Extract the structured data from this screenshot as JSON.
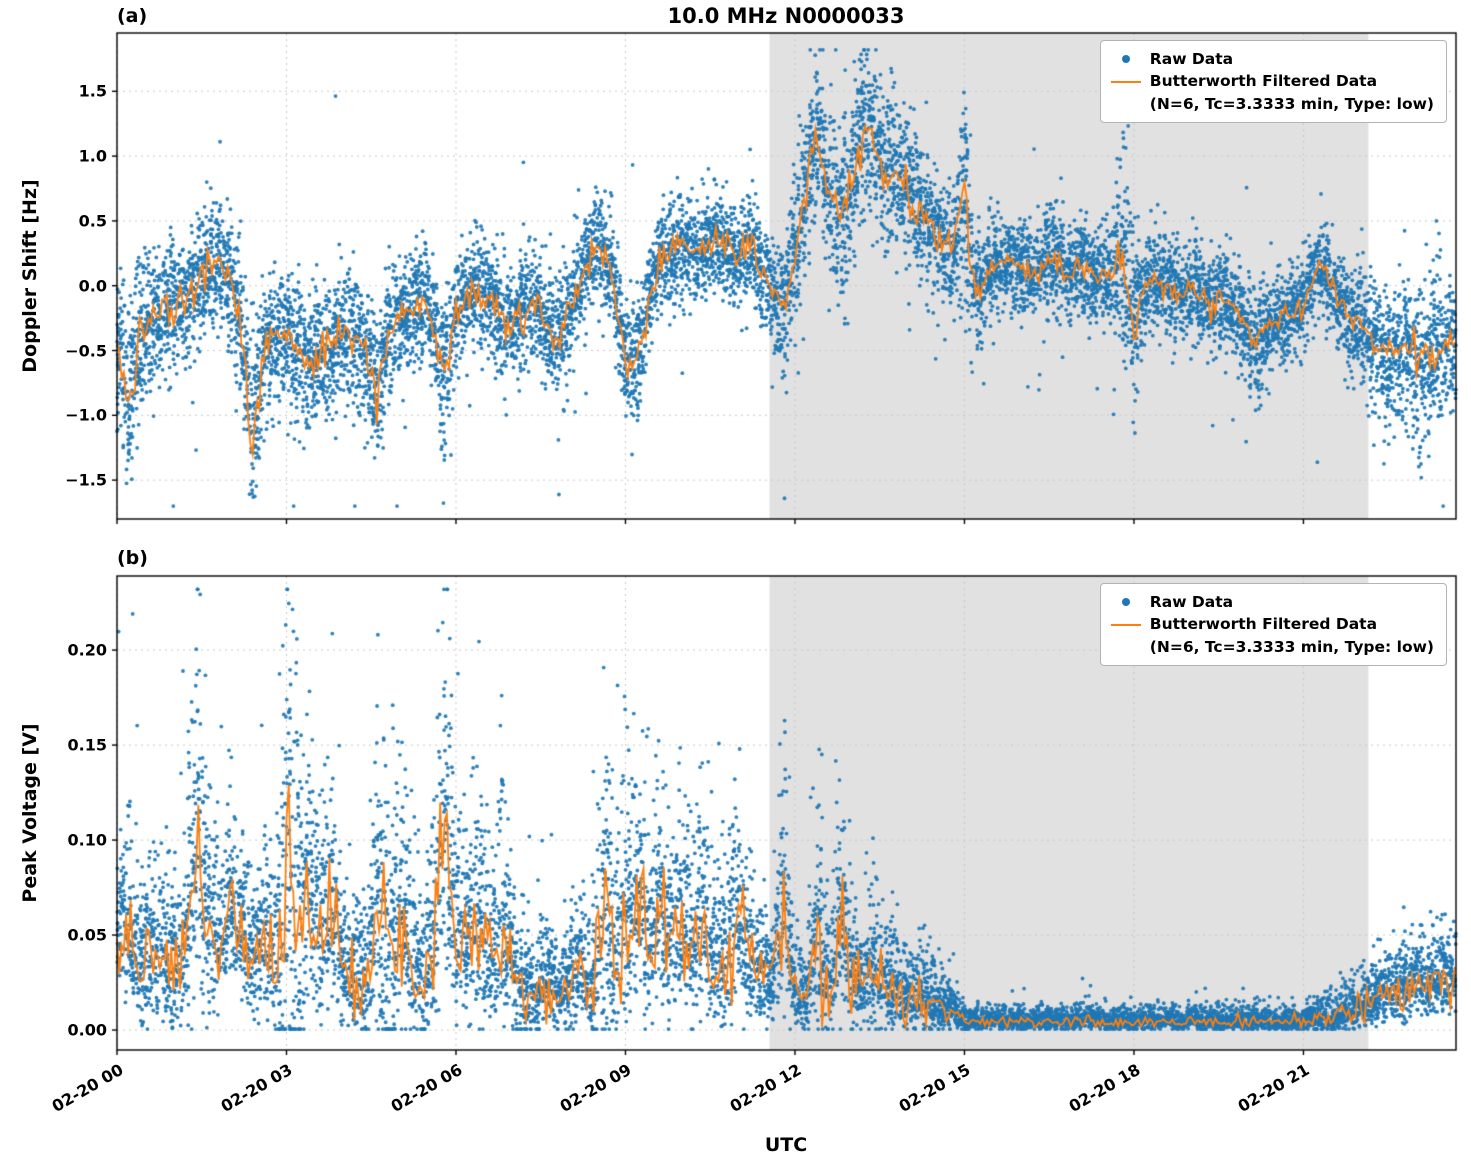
{
  "figure": {
    "title": "10.0 MHz N0000033",
    "xlabel": "UTC",
    "panel_a_label": "(a)",
    "panel_b_label": "(b)",
    "ylabel_a": "Doppler Shift [Hz]",
    "ylabel_b": "Peak Voltage [V]"
  },
  "legend": {
    "raw_label": "Raw Data",
    "filtered_label": "Butterworth Filtered Data",
    "filtered_params": "(N=6, Tc=3.3333 min, Type: low)"
  },
  "colors": {
    "raw": "#1f77b4",
    "filtered": "#ff7f0e",
    "shade": "#e1e1e1",
    "grid": "#c9c9c9",
    "spine": "#000000"
  },
  "chart_data": [
    {
      "type": "scatter",
      "panel": "(a)",
      "title": "10.0 MHz N0000033",
      "xlabel": "UTC",
      "ylabel": "Doppler Shift [Hz]",
      "x_unit": "hours since 02-20 00:00 UTC",
      "x_start": 0,
      "x_step": 0.2,
      "xlim": [
        0,
        23.7
      ],
      "ylim": [
        -1.8,
        1.95
      ],
      "x_tick_hours": [
        0,
        3,
        6,
        9,
        12,
        15,
        18,
        21
      ],
      "x_tick_labels": [
        "02-20 00",
        "02-20 03",
        "02-20 06",
        "02-20 09",
        "02-20 12",
        "02-20 15",
        "02-20 18",
        "02-20 21"
      ],
      "yticks": [
        1.5,
        1.0,
        0.5,
        0.0,
        -0.5,
        -1.0,
        -1.5
      ],
      "ytick_labels": [
        "1.5",
        "1.0",
        "0.5",
        "0.0",
        "−0.5",
        "−1.0",
        "−1.5"
      ],
      "grid": "on",
      "legend_position": "upper right",
      "shaded_region_hours": [
        11.55,
        22.15
      ],
      "series": [
        {
          "name": "Raw Data",
          "style": "scatter",
          "color": "#1f77b4",
          "spread": [
            0.35,
            0.4,
            0.3,
            0.25,
            0.25,
            0.25,
            0.25,
            0.25,
            0.25,
            0.25,
            0.25,
            0.3,
            0.35,
            0.3,
            0.25,
            0.25,
            0.25,
            0.25,
            0.25,
            0.25,
            0.25,
            0.25,
            0.25,
            0.3,
            0.28,
            0.22,
            0.22,
            0.22,
            0.22,
            0.3,
            0.22,
            0.22,
            0.22,
            0.22,
            0.22,
            0.22,
            0.22,
            0.22,
            0.22,
            0.22,
            0.22,
            0.22,
            0.22,
            0.22,
            0.22,
            0.25,
            0.25,
            0.2,
            0.2,
            0.2,
            0.2,
            0.2,
            0.2,
            0.2,
            0.2,
            0.2,
            0.22,
            0.2,
            0.2,
            0.25,
            0.3,
            0.3,
            0.3,
            0.28,
            0.3,
            0.32,
            0.3,
            0.3,
            0.3,
            0.28,
            0.28,
            0.25,
            0.25,
            0.22,
            0.25,
            0.45,
            0.25,
            0.2,
            0.18,
            0.18,
            0.18,
            0.18,
            0.18,
            0.18,
            0.18,
            0.18,
            0.18,
            0.18,
            0.18,
            0.45,
            0.3,
            0.18,
            0.18,
            0.18,
            0.18,
            0.18,
            0.18,
            0.18,
            0.18,
            0.18,
            0.2,
            0.2,
            0.18,
            0.18,
            0.18,
            0.18,
            0.18,
            0.18,
            0.18,
            0.18,
            0.22,
            0.25,
            0.3,
            0.3,
            0.3,
            0.32,
            0.3,
            0.3,
            0.28,
            0.3,
            0.3
          ]
        },
        {
          "name": "Butterworth Filtered Data (N=6, Tc=3.3333 min, Type: low)",
          "style": "line",
          "color": "#ff7f0e",
          "values": [
            -0.45,
            -0.9,
            -0.35,
            -0.3,
            -0.2,
            -0.15,
            -0.1,
            0.0,
            0.15,
            0.2,
            0.05,
            -0.3,
            -1.2,
            -0.5,
            -0.35,
            -0.4,
            -0.5,
            -0.6,
            -0.5,
            -0.45,
            -0.4,
            -0.35,
            -0.5,
            -0.9,
            -0.4,
            -0.2,
            -0.15,
            -0.1,
            -0.3,
            -0.75,
            -0.2,
            -0.1,
            -0.05,
            -0.1,
            -0.2,
            -0.3,
            -0.2,
            -0.1,
            -0.3,
            -0.4,
            -0.2,
            0.0,
            0.25,
            0.3,
            0.0,
            -0.55,
            -0.6,
            -0.15,
            0.2,
            0.25,
            0.3,
            0.25,
            0.3,
            0.35,
            0.3,
            0.2,
            0.35,
            0.1,
            -0.1,
            -0.15,
            0.3,
            0.8,
            1.2,
            0.7,
            0.5,
            0.8,
            1.25,
            1.1,
            0.8,
            0.9,
            0.75,
            0.55,
            0.5,
            0.35,
            0.25,
            0.7,
            -0.1,
            0.1,
            0.15,
            0.2,
            0.15,
            0.1,
            0.15,
            0.2,
            0.1,
            0.15,
            0.1,
            0.05,
            0.1,
            0.3,
            -0.3,
            0.0,
            0.05,
            0.0,
            -0.05,
            0.0,
            -0.1,
            -0.15,
            -0.1,
            -0.2,
            -0.35,
            -0.45,
            -0.3,
            -0.25,
            -0.2,
            -0.15,
            0.1,
            0.15,
            -0.1,
            -0.25,
            -0.3,
            -0.35,
            -0.5,
            -0.55,
            -0.45,
            -0.6,
            -0.5,
            -0.55,
            -0.4,
            -0.5,
            -0.35
          ]
        }
      ],
      "render": {
        "pts_per_sample": 90,
        "asym": false,
        "clip": [
          -1.7,
          1.82
        ],
        "line_jitter": 0.28,
        "seed": 42
      }
    },
    {
      "type": "scatter",
      "panel": "(b)",
      "title": "",
      "xlabel": "UTC",
      "ylabel": "Peak Voltage [V]",
      "x_unit": "hours since 02-20 00:00 UTC",
      "x_start": 0,
      "x_step": 0.2,
      "xlim": [
        0,
        23.7
      ],
      "ylim": [
        -0.0105,
        0.239
      ],
      "x_tick_hours": [
        0,
        3,
        6,
        9,
        12,
        15,
        18,
        21
      ],
      "x_tick_labels": [
        "02-20 00",
        "02-20 03",
        "02-20 06",
        "02-20 09",
        "02-20 12",
        "02-20 15",
        "02-20 18",
        "02-20 21"
      ],
      "yticks": [
        0.2,
        0.15,
        0.1,
        0.05,
        0.0
      ],
      "ytick_labels": [
        "0.20",
        "0.15",
        "0.10",
        "0.05",
        "0.00"
      ],
      "grid": "on",
      "legend_position": "upper right",
      "shaded_region_hours": [
        11.55,
        22.15
      ],
      "series": [
        {
          "name": "Raw Data",
          "style": "scatter",
          "color": "#1f77b4",
          "spread": [
            0.02,
            0.025,
            0.02,
            0.02,
            0.02,
            0.02,
            0.02,
            0.05,
            0.03,
            0.02,
            0.025,
            0.02,
            0.02,
            0.025,
            0.03,
            0.07,
            0.06,
            0.035,
            0.03,
            0.03,
            0.02,
            0.02,
            0.02,
            0.04,
            0.045,
            0.035,
            0.025,
            0.02,
            0.03,
            0.05,
            0.03,
            0.025,
            0.03,
            0.025,
            0.03,
            0.02,
            0.015,
            0.012,
            0.015,
            0.012,
            0.015,
            0.018,
            0.015,
            0.045,
            0.03,
            0.035,
            0.035,
            0.025,
            0.03,
            0.025,
            0.03,
            0.025,
            0.03,
            0.02,
            0.025,
            0.03,
            0.02,
            0.018,
            0.015,
            0.035,
            0.012,
            0.01,
            0.035,
            0.015,
            0.03,
            0.02,
            0.015,
            0.02,
            0.012,
            0.015,
            0.01,
            0.015,
            0.01,
            0.008,
            0.006,
            0.003,
            0.003,
            0.003,
            0.003,
            0.003,
            0.003,
            0.003,
            0.003,
            0.003,
            0.003,
            0.003,
            0.003,
            0.003,
            0.003,
            0.003,
            0.003,
            0.003,
            0.003,
            0.003,
            0.003,
            0.003,
            0.003,
            0.003,
            0.003,
            0.003,
            0.003,
            0.003,
            0.003,
            0.003,
            0.003,
            0.003,
            0.004,
            0.005,
            0.006,
            0.007,
            0.008,
            0.009,
            0.01,
            0.01,
            0.011,
            0.012,
            0.01,
            0.012,
            0.011,
            0.013,
            0.012
          ]
        },
        {
          "name": "Butterworth Filtered Data (N=6, Tc=3.3333 min, Type: low)",
          "style": "line",
          "color": "#ff7f0e",
          "values": [
            0.05,
            0.055,
            0.03,
            0.04,
            0.035,
            0.03,
            0.04,
            0.1,
            0.05,
            0.04,
            0.06,
            0.05,
            0.035,
            0.05,
            0.03,
            0.07,
            0.065,
            0.07,
            0.045,
            0.065,
            0.03,
            0.025,
            0.02,
            0.07,
            0.03,
            0.065,
            0.04,
            0.025,
            0.045,
            0.115,
            0.05,
            0.045,
            0.05,
            0.035,
            0.055,
            0.03,
            0.02,
            0.015,
            0.025,
            0.02,
            0.025,
            0.03,
            0.02,
            0.06,
            0.04,
            0.055,
            0.07,
            0.045,
            0.065,
            0.045,
            0.06,
            0.04,
            0.055,
            0.035,
            0.04,
            0.06,
            0.035,
            0.03,
            0.025,
            0.065,
            0.02,
            0.015,
            0.05,
            0.02,
            0.055,
            0.03,
            0.02,
            0.035,
            0.02,
            0.025,
            0.015,
            0.02,
            0.015,
            0.012,
            0.01,
            0.004,
            0.005,
            0.004,
            0.005,
            0.004,
            0.005,
            0.004,
            0.005,
            0.005,
            0.004,
            0.005,
            0.006,
            0.005,
            0.004,
            0.005,
            0.004,
            0.005,
            0.004,
            0.005,
            0.004,
            0.005,
            0.004,
            0.005,
            0.004,
            0.005,
            0.004,
            0.005,
            0.004,
            0.005,
            0.005,
            0.004,
            0.005,
            0.006,
            0.008,
            0.01,
            0.012,
            0.015,
            0.018,
            0.02,
            0.022,
            0.025,
            0.022,
            0.028,
            0.025,
            0.03,
            0.028
          ]
        }
      ],
      "render": {
        "pts_per_sample": 80,
        "asym": true,
        "clip": [
          0.0005,
          0.232
        ],
        "line_jitter": 0.5,
        "seed": 7
      }
    }
  ]
}
